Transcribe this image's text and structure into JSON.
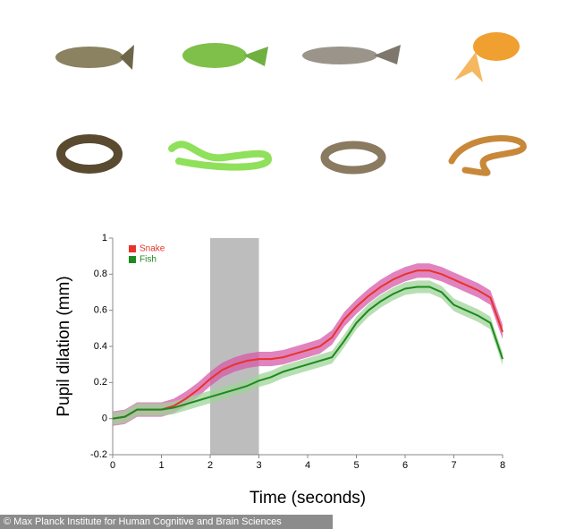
{
  "chart_data": {
    "type": "line",
    "xlabel": "Time (seconds)",
    "ylabel": "Pupil dilation (mm)",
    "x": [
      0,
      0.25,
      0.5,
      0.75,
      1,
      1.25,
      1.5,
      1.75,
      2,
      2.25,
      2.5,
      2.75,
      3,
      3.25,
      3.5,
      3.75,
      4,
      4.25,
      4.5,
      4.75,
      5,
      5.25,
      5.5,
      5.75,
      6,
      6.25,
      6.5,
      6.75,
      7,
      7.25,
      7.5,
      7.75,
      8
    ],
    "series": [
      {
        "name": "Snake",
        "color": "#e8332a",
        "band_color": "#d65aa8",
        "error": 0.04,
        "values": [
          0,
          0.01,
          0.05,
          0.05,
          0.05,
          0.07,
          0.11,
          0.16,
          0.22,
          0.27,
          0.3,
          0.32,
          0.33,
          0.33,
          0.34,
          0.36,
          0.38,
          0.4,
          0.45,
          0.55,
          0.62,
          0.68,
          0.73,
          0.77,
          0.8,
          0.82,
          0.82,
          0.8,
          0.77,
          0.74,
          0.71,
          0.67,
          0.48
        ]
      },
      {
        "name": "Fish",
        "color": "#1e8a1e",
        "band_color": "#9fd49a",
        "error": 0.035,
        "values": [
          0,
          0.01,
          0.05,
          0.05,
          0.05,
          0.06,
          0.08,
          0.1,
          0.12,
          0.14,
          0.16,
          0.18,
          0.21,
          0.23,
          0.26,
          0.28,
          0.3,
          0.32,
          0.34,
          0.43,
          0.53,
          0.6,
          0.65,
          0.69,
          0.72,
          0.73,
          0.73,
          0.7,
          0.63,
          0.6,
          0.57,
          0.53,
          0.33
        ]
      }
    ],
    "shaded_region": [
      2,
      3
    ],
    "xlim": [
      0,
      8
    ],
    "xticks": [
      0,
      1,
      2,
      3,
      4,
      5,
      6,
      7,
      8
    ],
    "ylim": [
      -0.2,
      1
    ],
    "yticks": [
      -0.2,
      0,
      0.2,
      0.4,
      0.6,
      0.8,
      1
    ],
    "legend": "upper left",
    "credit": "© Max Planck Institute for Human Cognitive and Brain Sciences"
  }
}
